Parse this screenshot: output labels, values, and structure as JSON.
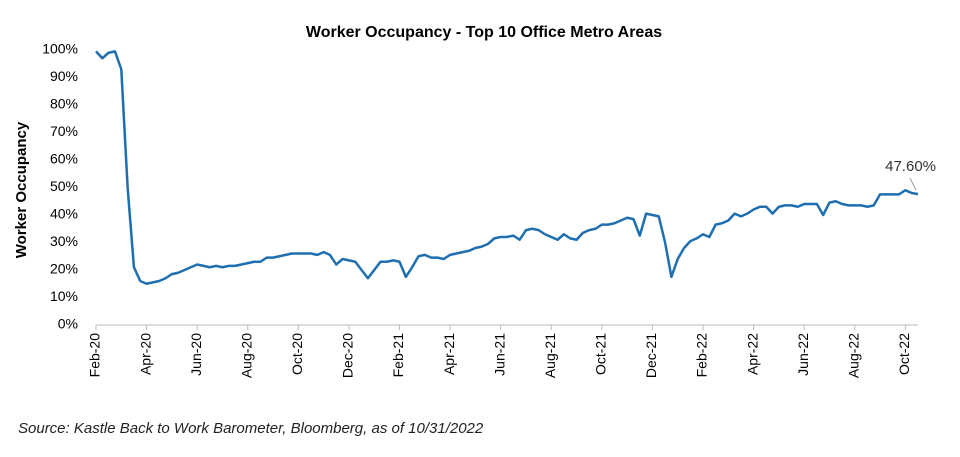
{
  "chart_data": {
    "type": "line",
    "title": "Worker Occupancy - Top 10 Office Metro Areas",
    "y_label": "Worker Occupancy",
    "source": "Source: Kastle Back to Work Barometer, Bloomberg, as of 10/31/2022",
    "annotation": "47.60%",
    "categories": [
      "Feb-20",
      null,
      null,
      null,
      null,
      null,
      null,
      null,
      "Apr-20",
      null,
      null,
      null,
      null,
      null,
      null,
      null,
      "Jun-20",
      null,
      null,
      null,
      null,
      null,
      null,
      null,
      "Aug-20",
      null,
      null,
      null,
      null,
      null,
      null,
      null,
      "Oct-20",
      null,
      null,
      null,
      null,
      null,
      null,
      null,
      "Dec-20",
      null,
      null,
      null,
      null,
      null,
      null,
      null,
      "Feb-21",
      null,
      null,
      null,
      null,
      null,
      null,
      null,
      "Apr-21",
      null,
      null,
      null,
      null,
      null,
      null,
      null,
      "Jun-21",
      null,
      null,
      null,
      null,
      null,
      null,
      null,
      "Aug-21",
      null,
      null,
      null,
      null,
      null,
      null,
      null,
      "Oct-21",
      null,
      null,
      null,
      null,
      null,
      null,
      null,
      "Dec-21",
      null,
      null,
      null,
      null,
      null,
      null,
      null,
      "Feb-22",
      null,
      null,
      null,
      null,
      null,
      null,
      null,
      "Apr-22",
      null,
      null,
      null,
      null,
      null,
      null,
      null,
      "Jun-22",
      null,
      null,
      null,
      null,
      null,
      null,
      null,
      "Aug-22",
      null,
      null,
      null,
      null,
      null,
      null,
      null,
      "Oct-22",
      null,
      null
    ],
    "series": [
      {
        "name": "Worker Occupancy",
        "color": "#1f6fb0",
        "values": [
          99.5,
          97,
          99,
          99.5,
          93,
          50,
          21,
          16,
          15,
          15.5,
          16,
          17,
          18.5,
          19,
          20,
          21,
          22,
          21.5,
          21,
          21.5,
          21,
          21.5,
          21.5,
          22,
          22.5,
          23,
          23,
          24.5,
          24.5,
          25,
          25.5,
          26,
          26,
          26,
          26,
          25.5,
          26.5,
          25.5,
          22,
          24,
          23.5,
          23,
          20,
          17,
          20,
          23,
          23,
          23.5,
          23,
          17.5,
          21,
          25,
          25.5,
          24.5,
          24.5,
          24,
          25.5,
          26,
          26.5,
          27,
          28,
          28.5,
          29.5,
          31.5,
          32,
          32,
          32.5,
          31,
          34.5,
          35,
          34.5,
          33,
          32,
          31,
          33,
          31.5,
          31,
          33.5,
          34.5,
          35,
          36.5,
          36.5,
          37,
          38,
          39,
          38.5,
          32.5,
          40.5,
          40,
          39.5,
          30,
          17.5,
          24,
          28,
          30.5,
          31.5,
          33,
          32,
          36.5,
          37,
          38,
          40.5,
          39.5,
          40.5,
          42,
          43,
          43,
          40.5,
          43,
          43.5,
          43.5,
          43,
          44,
          44,
          44,
          40,
          44.5,
          45,
          44,
          43.5,
          43.5,
          43.5,
          43,
          43.5,
          47.5,
          47.5,
          47.5,
          47.5,
          49,
          48,
          47.6
        ]
      }
    ],
    "ylim": [
      0,
      100
    ],
    "yticks": [
      {
        "value": 0,
        "label": "0%"
      },
      {
        "value": 10,
        "label": "10%"
      },
      {
        "value": 20,
        "label": "20%"
      },
      {
        "value": 30,
        "label": "30%"
      },
      {
        "value": 40,
        "label": "40%"
      },
      {
        "value": 50,
        "label": "50%"
      },
      {
        "value": 60,
        "label": "60%"
      },
      {
        "value": 70,
        "label": "70%"
      },
      {
        "value": 80,
        "label": "80%"
      },
      {
        "value": 90,
        "label": "90%"
      },
      {
        "value": 100,
        "label": "100%"
      }
    ],
    "grid": false
  }
}
